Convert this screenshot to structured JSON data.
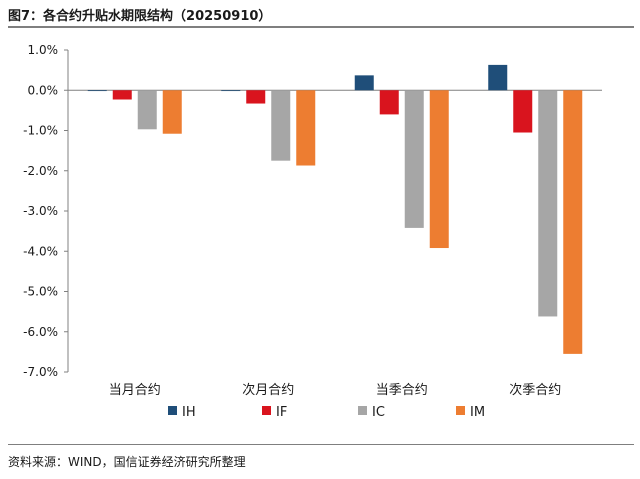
{
  "header": {
    "title": "图7：各合约升贴水期限结构（20250910）"
  },
  "footer": {
    "source": "资料来源：WIND，国信证券经济研究所整理"
  },
  "chart_data": {
    "type": "bar",
    "categories": [
      "当月合约",
      "次月合约",
      "当季合约",
      "次季合约"
    ],
    "series": [
      {
        "name": "IH",
        "color": "#1f4e79",
        "values": [
          -0.02,
          0.0,
          0.37,
          0.63
        ]
      },
      {
        "name": "IF",
        "color": "#d9141e",
        "values": [
          -0.23,
          -0.33,
          -0.6,
          -1.05
        ]
      },
      {
        "name": "IC",
        "color": "#a6a6a6",
        "values": [
          -0.97,
          -1.75,
          -3.42,
          -5.62
        ]
      },
      {
        "name": "IM",
        "color": "#ed7d31",
        "values": [
          -1.08,
          -1.87,
          -3.92,
          -6.55
        ]
      }
    ],
    "yticks": [
      "1.0%",
      "0.0%",
      "-1.0%",
      "-2.0%",
      "-3.0%",
      "-4.0%",
      "-5.0%",
      "-6.0%",
      "-7.0%"
    ],
    "ylim": [
      -7,
      1
    ],
    "unit": "%",
    "grid": false,
    "legend": "bottom"
  }
}
